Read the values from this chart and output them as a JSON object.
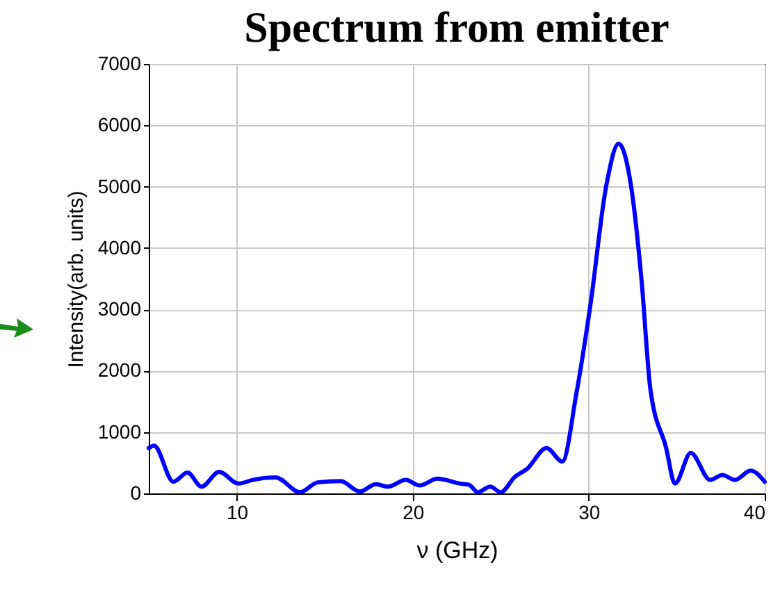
{
  "chart_data": {
    "type": "line",
    "title": "Spectrum from emitter",
    "xlabel": "ν (GHz)",
    "ylabel": "Intensity(arb. units)",
    "x": [
      5,
      5.3,
      6.4,
      7.2,
      8.0,
      9.0,
      10.1,
      10.9,
      12.2,
      13.6,
      14.6,
      15.9,
      17.0,
      17.9,
      18.6,
      19.6,
      20.4,
      21.4,
      22.7,
      23.2,
      23.7,
      24.4,
      25.0,
      25.8,
      26.5,
      27.6,
      28.5,
      29.3,
      30.1,
      31.0,
      31.7,
      32.4,
      33.0,
      33.5,
      34.4,
      34.9,
      35.8,
      36.9,
      37.6,
      38.3,
      39.2,
      40
    ],
    "series": [
      {
        "color": "#0000ff",
        "values": [
          740,
          780,
          190,
          340,
          110,
          350,
          160,
          220,
          260,
          20,
          180,
          200,
          30,
          150,
          110,
          220,
          130,
          240,
          160,
          140,
          20,
          110,
          20,
          270,
          400,
          740,
          520,
          1630,
          3080,
          5020,
          5700,
          5020,
          3480,
          1710,
          740,
          160,
          660,
          220,
          300,
          220,
          370,
          190
        ]
      }
    ],
    "xlim": [
      5,
      40
    ],
    "xticks": [
      10,
      20,
      30,
      40
    ],
    "ylim": [
      0,
      7000
    ],
    "yticks": [
      0,
      1000,
      2000,
      3000,
      4000,
      5000,
      6000,
      7000
    ],
    "grid": true,
    "marker": "none",
    "line_style": "solid"
  }
}
